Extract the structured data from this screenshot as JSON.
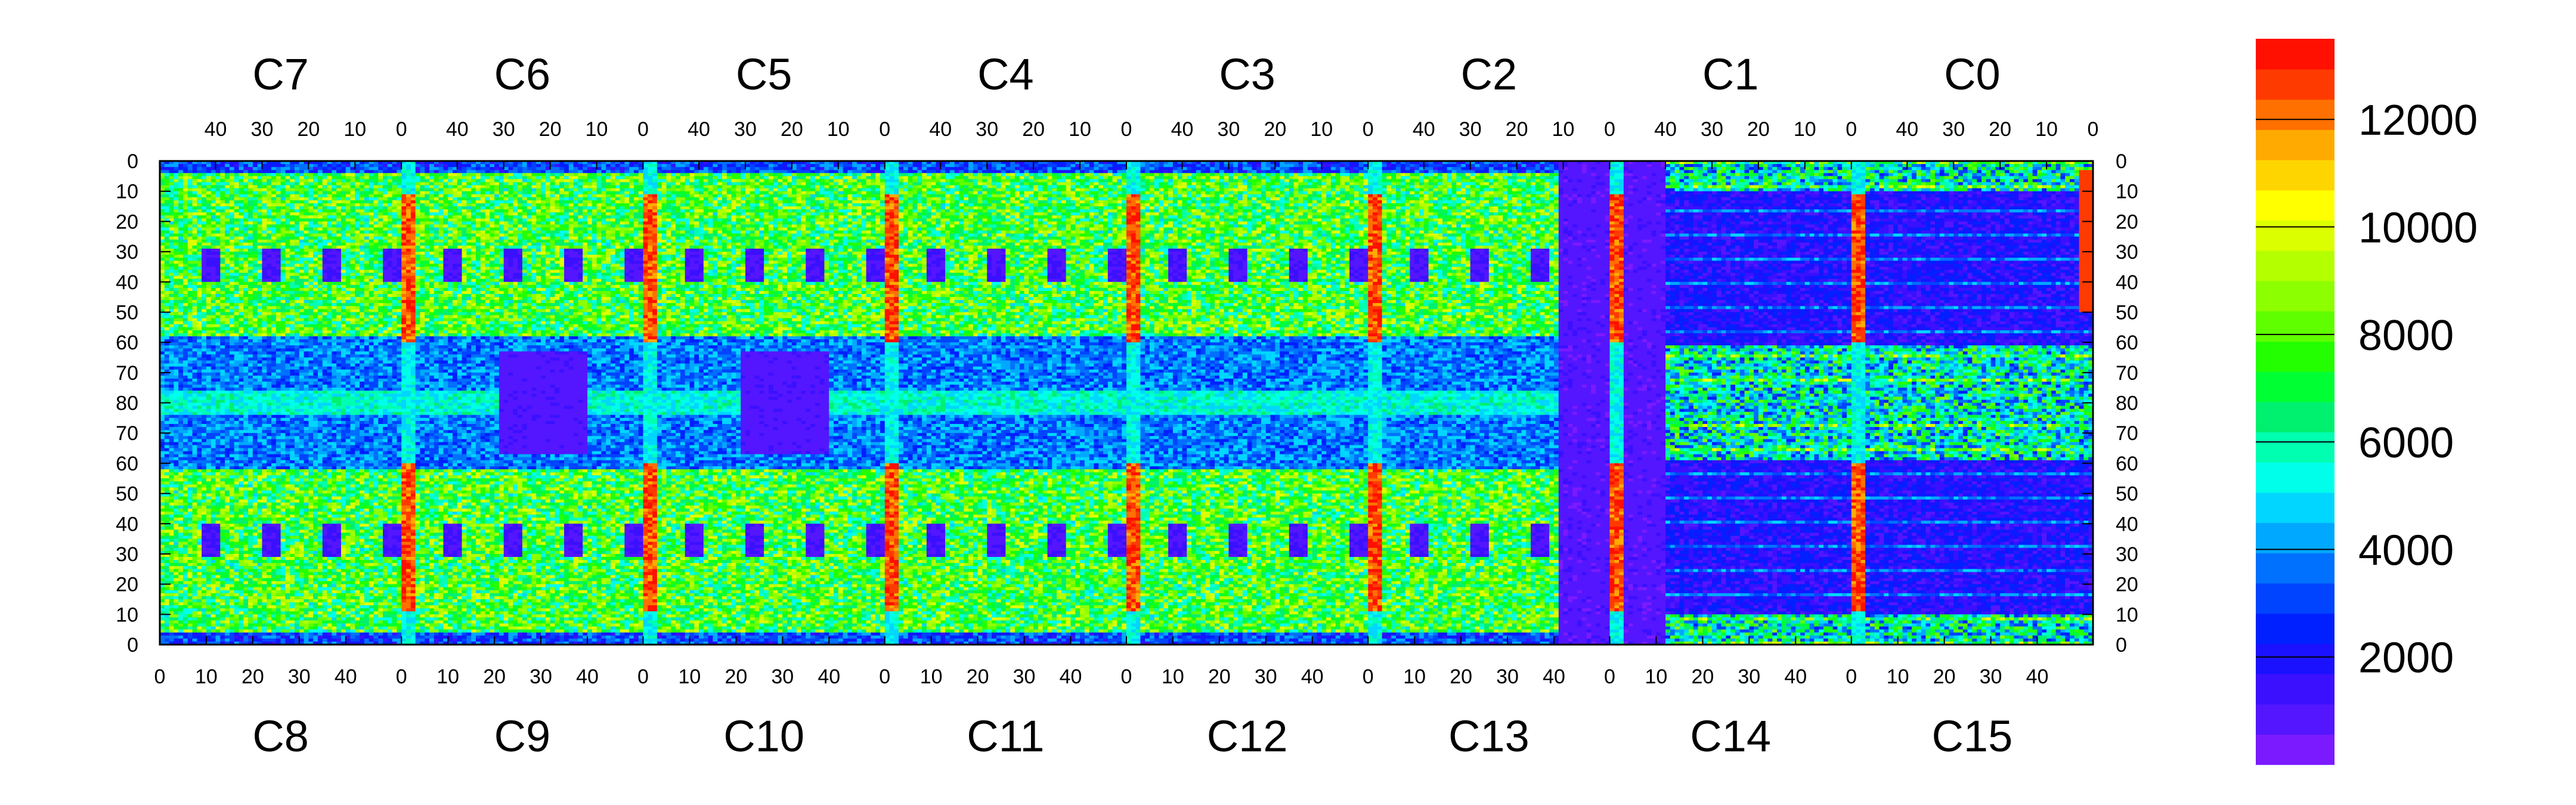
{
  "chart_data": {
    "type": "heatmap",
    "title": "",
    "xlabel": "",
    "ylabel": "",
    "chips_top": [
      "C7",
      "C6",
      "C5",
      "C4",
      "C3",
      "C2",
      "C1",
      "C0"
    ],
    "chips_bottom": [
      "C8",
      "C9",
      "C10",
      "C11",
      "C12",
      "C13",
      "C14",
      "C15"
    ],
    "x_ticks_top": [
      "40",
      "30",
      "20",
      "10",
      "0"
    ],
    "x_ticks_bottom": [
      "0",
      "10",
      "20",
      "30",
      "40"
    ],
    "y_ticks_top_half": [
      "0",
      "10",
      "20",
      "30",
      "40",
      "50",
      "60",
      "70",
      "80"
    ],
    "y_ticks_bottom_half": [
      "70",
      "60",
      "50",
      "40",
      "30",
      "20",
      "10",
      "0"
    ],
    "colorbar": {
      "ticks": [
        "2000",
        "4000",
        "6000",
        "8000",
        "10000",
        "12000"
      ],
      "range": [
        0,
        13500
      ],
      "colors": [
        "#7b1aff",
        "#5416ff",
        "#3a10ff",
        "#1a12ff",
        "#0020ff",
        "#0044ff",
        "#0070ff",
        "#00a8ff",
        "#00d6ff",
        "#00ffea",
        "#00ffb0",
        "#00f070",
        "#00ff33",
        "#23ff00",
        "#60ff00",
        "#8cff00",
        "#b4ff00",
        "#dcff00",
        "#ffff00",
        "#ffd500",
        "#ffaa00",
        "#ff7000",
        "#ff3a00",
        "#ff1000"
      ]
    },
    "description_values": {
      "chip_rows": 80,
      "chip_cols": 52,
      "hot_columns": [
        "C7/C8 col 0",
        "C6/C9 col 0",
        "C5/C10 col 0",
        "C4/C11 col 0",
        "C3/C12 col 0",
        "C2/C13 col 0",
        "C1/C14 col 0",
        "C0/C15 col 0"
      ],
      "typical_level_active": 7500,
      "typical_level_dead": 700,
      "hot_column_level": 13000
    }
  }
}
